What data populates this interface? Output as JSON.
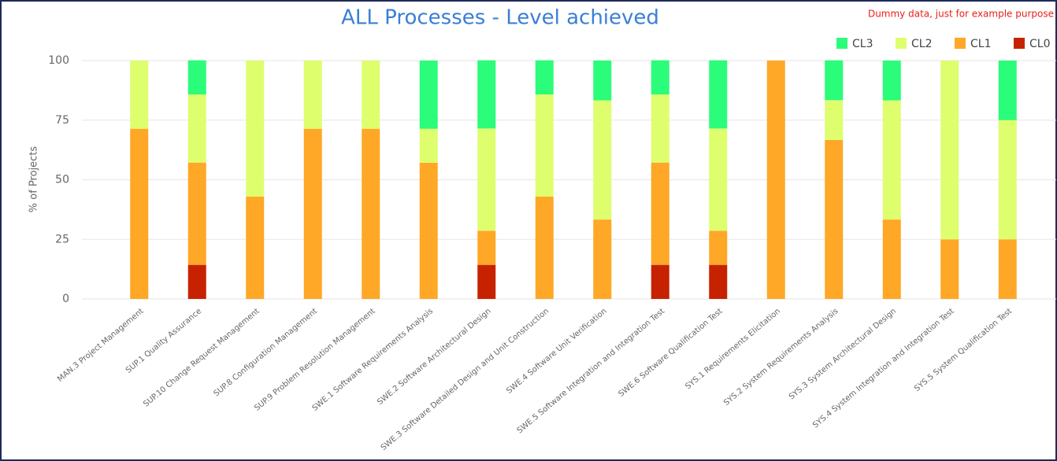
{
  "chart_data": {
    "type": "stacked_bar",
    "title": "ALL Processes - Level achieved",
    "annotation": "Dummy data, just for example purpose",
    "y_label": "% of Projects",
    "categories": [
      "MAN.3 Project Management",
      "SUP.1 Quality Assurance",
      "SUP.10 Change Request Management",
      "SUP.8 Configuration Management",
      "SUP.9 Problem Resolution Management",
      "SWE.1 Software Requirements Analysis",
      "SWE.2 Software Architectural Design",
      "SWE.3 Software Detailed Design and Unit Construction",
      "SWE.4 Software Unit Verification",
      "SWE.5 Software Integration and Integration Test",
      "SWE.6 Software Qualification Test",
      "SYS.1 Requirements Elicitation",
      "SYS.2 System Requirements Analysis",
      "SYS.3 System Architectural Design",
      "SYS.4 System Integration and Integration Test",
      "SYS.5 System Qualification Test"
    ],
    "series": [
      {
        "name": "CL0",
        "color": "#c62200",
        "values": [
          0,
          14.3,
          0,
          0,
          0,
          0,
          14.3,
          0,
          0,
          14.3,
          14.3,
          0,
          0,
          0,
          0,
          0
        ]
      },
      {
        "name": "CL1",
        "color": "#ffa726",
        "values": [
          71.4,
          42.9,
          42.9,
          71.4,
          71.4,
          57.1,
          14.3,
          42.9,
          33.3,
          42.9,
          14.3,
          100,
          66.7,
          33.3,
          25,
          25
        ]
      },
      {
        "name": "CL2",
        "color": "#defe6e",
        "values": [
          28.6,
          28.6,
          57.1,
          28.6,
          28.6,
          14.3,
          42.9,
          42.9,
          50,
          28.6,
          42.9,
          0,
          16.7,
          50,
          75,
          50
        ]
      },
      {
        "name": "CL3",
        "color": "#2bfc7a",
        "values": [
          0,
          14.3,
          0,
          0,
          0,
          28.6,
          28.6,
          14.3,
          16.7,
          14.3,
          28.6,
          0,
          16.7,
          16.7,
          0,
          25
        ]
      }
    ],
    "ylim": [
      0,
      100
    ],
    "yticks": [
      0,
      25,
      50,
      75,
      100
    ],
    "grid": true,
    "legend": "top-right"
  }
}
